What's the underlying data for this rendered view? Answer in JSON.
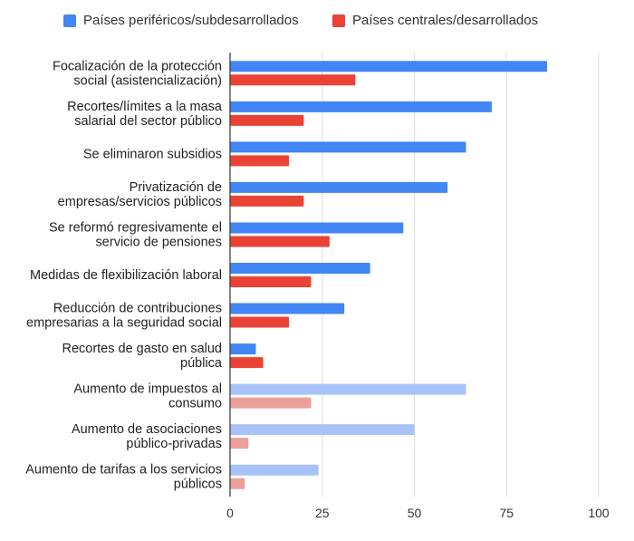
{
  "chart_data": {
    "type": "bar",
    "orientation": "horizontal",
    "legend_position": "top",
    "grid": true,
    "xlim": [
      0,
      100
    ],
    "xticks": [
      0,
      25,
      50,
      75,
      100
    ],
    "categories": [
      [
        "Focalización de la protección",
        "social (asistencialización)"
      ],
      [
        "Recortes/límites a la masa",
        "salarial del sector público"
      ],
      [
        "Se eliminaron subsidios"
      ],
      [
        "Privatización de",
        "empresas/servicios públicos"
      ],
      [
        "Se reformó regresivamente el",
        "servicio de pensiones"
      ],
      [
        "Medidas de flexibilización laboral"
      ],
      [
        "Reducción de contribuciones",
        "empresarias a la seguridad social"
      ],
      [
        "Recortes de gasto en salud",
        "pública"
      ],
      [
        "Aumento de impuestos al",
        "consumo"
      ],
      [
        "Aumento de asociaciones",
        "público-privadas"
      ],
      [
        "Aumento de tarifas a los servicios",
        "públicos"
      ]
    ],
    "series": [
      {
        "name": "Países periféricos/subdesarrollados",
        "color": "#4285f4",
        "faded_color": "#a7c3f8",
        "values": [
          86,
          71,
          64,
          59,
          47,
          38,
          31,
          7,
          64,
          50,
          24
        ]
      },
      {
        "name": "Países centrales/desarrollados",
        "color": "#ea4335",
        "faded_color": "#eca09a",
        "values": [
          34,
          20,
          16,
          20,
          27,
          22,
          16,
          9,
          22,
          5,
          4
        ]
      }
    ],
    "faded_from_index": 8
  }
}
